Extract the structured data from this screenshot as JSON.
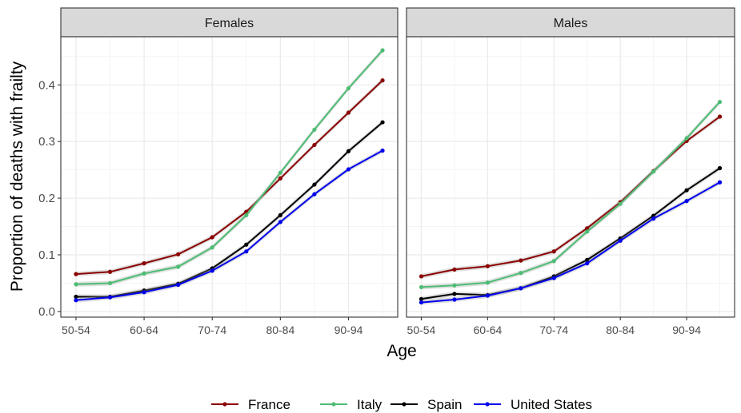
{
  "chart_data": {
    "type": "line",
    "ylabel": "Proportion of deaths with frailty",
    "xlabel": "Age",
    "ylim": [
      -0.01,
      0.485
    ],
    "yticks": [
      0.0,
      0.1,
      0.2,
      0.3,
      0.4
    ],
    "ytick_labels": [
      "0.0",
      "0.1",
      "0.2",
      "0.3",
      "0.4"
    ],
    "categories": [
      "50-54",
      "55-59",
      "60-64",
      "65-69",
      "70-74",
      "75-79",
      "80-84",
      "85-89",
      "90-94",
      "95+"
    ],
    "xtick_labels": [
      "50-54",
      "60-64",
      "70-74",
      "80-84",
      "90-94"
    ],
    "grid": true,
    "legend_position": "bottom",
    "series_styles": [
      {
        "name": "France",
        "color": "#8B0000"
      },
      {
        "name": "Italy",
        "color": "#4DBD74"
      },
      {
        "name": "Spain",
        "color": "#000000"
      },
      {
        "name": "United States",
        "color": "#0000EE"
      }
    ],
    "panels": [
      {
        "title": "Females",
        "series": [
          {
            "name": "France",
            "values": [
              0.066,
              0.07,
              0.085,
              0.101,
              0.131,
              0.176,
              0.235,
              0.294,
              0.351,
              0.408
            ]
          },
          {
            "name": "Italy",
            "values": [
              0.048,
              0.05,
              0.067,
              0.079,
              0.113,
              0.17,
              0.245,
              0.321,
              0.394,
              0.461
            ]
          },
          {
            "name": "Spain",
            "values": [
              0.026,
              0.026,
              0.037,
              0.049,
              0.076,
              0.118,
              0.17,
              0.224,
              0.283,
              0.334
            ]
          },
          {
            "name": "United States",
            "values": [
              0.02,
              0.025,
              0.034,
              0.047,
              0.072,
              0.106,
              0.158,
              0.207,
              0.251,
              0.284
            ]
          }
        ]
      },
      {
        "title": "Males",
        "series": [
          {
            "name": "France",
            "values": [
              0.062,
              0.074,
              0.08,
              0.09,
              0.106,
              0.147,
              0.193,
              0.248,
              0.301,
              0.344
            ]
          },
          {
            "name": "Italy",
            "values": [
              0.043,
              0.046,
              0.051,
              0.068,
              0.089,
              0.141,
              0.19,
              0.247,
              0.306,
              0.37
            ]
          },
          {
            "name": "Spain",
            "values": [
              0.022,
              0.031,
              0.029,
              0.041,
              0.062,
              0.091,
              0.129,
              0.169,
              0.214,
              0.253
            ]
          },
          {
            "name": "United States",
            "values": [
              0.016,
              0.021,
              0.028,
              0.041,
              0.059,
              0.085,
              0.125,
              0.164,
              0.195,
              0.228
            ]
          }
        ]
      }
    ]
  }
}
